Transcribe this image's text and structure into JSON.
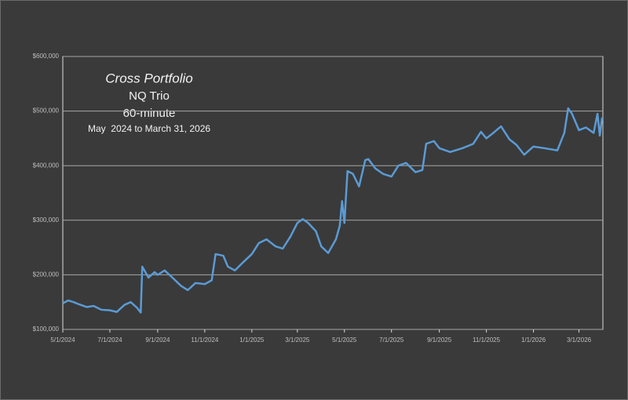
{
  "chart_data": {
    "type": "line",
    "title": "Cross Portfolio",
    "subtitles": [
      "NQ Trio",
      "60-minute",
      "May  2024 to March 31, 2026"
    ],
    "x": [
      "5/1/2024",
      "5/8/2024",
      "5/15/2024",
      "5/22/2024",
      "6/1/2024",
      "6/10/2024",
      "6/20/2024",
      "7/1/2024",
      "7/10/2024",
      "7/20/2024",
      "7/28/2024",
      "8/5/2024",
      "8/10/2024",
      "8/12/2024",
      "8/20/2024",
      "8/28/2024",
      "9/1/2024",
      "9/10/2024",
      "9/20/2024",
      "10/1/2024",
      "10/10/2024",
      "10/20/2024",
      "11/1/2024",
      "11/10/2024",
      "11/15/2024",
      "11/25/2024",
      "12/1/2024",
      "12/10/2024",
      "12/20/2024",
      "1/1/2025",
      "1/10/2025",
      "1/20/2025",
      "2/1/2025",
      "2/10/2025",
      "2/20/2025",
      "3/1/2025",
      "3/8/2025",
      "3/15/2025",
      "3/25/2025",
      "4/1/2025",
      "4/10/2025",
      "4/20/2025",
      "4/25/2025",
      "4/28/2025",
      "5/1/2025",
      "5/5/2025",
      "5/12/2025",
      "5/20/2025",
      "5/28/2025",
      "6/1/2025",
      "6/10/2025",
      "6/20/2025",
      "7/1/2025",
      "7/10/2025",
      "7/20/2025",
      "8/1/2025",
      "8/10/2025",
      "8/15/2025",
      "8/25/2025",
      "9/1/2025",
      "9/15/2025",
      "10/1/2025",
      "10/15/2025",
      "10/25/2025",
      "11/1/2025",
      "11/10/2025",
      "11/20/2025",
      "12/1/2025",
      "12/10/2025",
      "12/20/2025",
      "1/1/2026",
      "1/15/2026",
      "2/1/2026",
      "2/10/2026",
      "2/15/2026",
      "2/20/2026",
      "3/1/2026",
      "3/10/2026",
      "3/20/2026",
      "3/25/2026",
      "3/28/2026",
      "3/31/2026"
    ],
    "series": [
      {
        "color": "#5b9bd5",
        "values": [
          148000,
          153000,
          150000,
          146000,
          141000,
          143000,
          136000,
          135000,
          132000,
          145000,
          150000,
          140000,
          131000,
          215000,
          195000,
          205000,
          200000,
          208000,
          195000,
          180000,
          172000,
          185000,
          183000,
          190000,
          238000,
          235000,
          215000,
          208000,
          222000,
          238000,
          258000,
          265000,
          252000,
          248000,
          270000,
          295000,
          302000,
          295000,
          280000,
          252000,
          240000,
          265000,
          290000,
          335000,
          295000,
          390000,
          385000,
          362000,
          410000,
          412000,
          395000,
          385000,
          380000,
          400000,
          405000,
          388000,
          392000,
          440000,
          445000,
          432000,
          425000,
          432000,
          440000,
          462000,
          450000,
          460000,
          472000,
          448000,
          438000,
          420000,
          435000,
          432000,
          428000,
          460000,
          505000,
          495000,
          465000,
          470000,
          460000,
          495000,
          455000,
          488000
        ]
      }
    ],
    "xlim": [
      "5/1/2024",
      "4/1/2026"
    ],
    "xticks": [
      "5/1/2024",
      "7/1/2024",
      "9/1/2024",
      "11/1/2024",
      "1/1/2025",
      "3/1/2025",
      "5/1/2025",
      "7/1/2025",
      "9/1/2025",
      "11/1/2025",
      "1/1/2026",
      "3/1/2026"
    ],
    "ylim": [
      100000,
      600000
    ],
    "yticks": [
      {
        "value": 100000,
        "label": "$100,000"
      },
      {
        "value": 200000,
        "label": "$200,000"
      },
      {
        "value": 300000,
        "label": "$300,000"
      },
      {
        "value": 400000,
        "label": "$400,000"
      },
      {
        "value": 500000,
        "label": "$500,000"
      },
      {
        "value": 600000,
        "label": "$600,000"
      }
    ],
    "grid": true
  }
}
